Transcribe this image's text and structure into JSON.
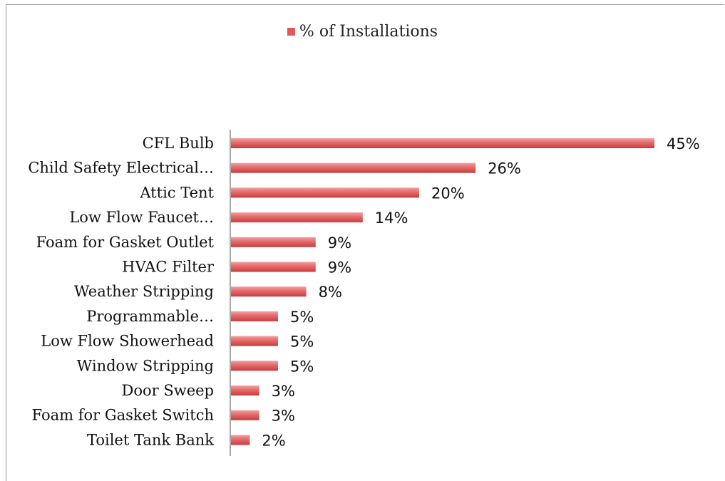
{
  "chart_data": {
    "type": "bar",
    "orientation": "horizontal",
    "categories": [
      "CFL Bulb",
      "Child Safety Electrical…",
      "Attic Tent",
      "Low Flow Faucet…",
      "Foam for Gasket Outlet",
      "HVAC Filter",
      "Weather Stripping",
      "Programmable…",
      "Low Flow Showerhead",
      "Window Stripping",
      "Door Sweep",
      "Foam for Gasket Switch",
      "Toilet Tank Bank"
    ],
    "series": [
      {
        "name": "% of Installations",
        "values": [
          45,
          26,
          20,
          14,
          9,
          9,
          8,
          5,
          5,
          5,
          3,
          3,
          2
        ],
        "labels": [
          "45%",
          "26%",
          "20%",
          "14%",
          "9%",
          "9%",
          "8%",
          "5%",
          "5%",
          "5%",
          "3%",
          "3%",
          "2%"
        ]
      }
    ],
    "legend_position": "top",
    "grid": false,
    "xlim": [
      0,
      45
    ],
    "colors": {
      "bar_light": "#f2a0a0",
      "bar_mid": "#e36a6a",
      "bar_dark": "#c93c3c",
      "legend_swatch": "#e05a5a"
    }
  }
}
